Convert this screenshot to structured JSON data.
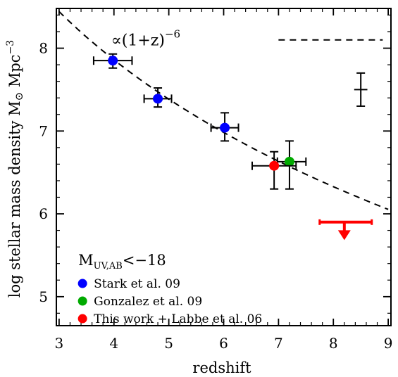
{
  "chart_data": {
    "type": "scatter",
    "xlabel": "redshift",
    "ylabel_main": "log stellar mass density M",
    "ylabel_sun": "⊙",
    "ylabel_unit": " Mpc",
    "ylabel_exp": "−3",
    "xlim": [
      2.95,
      9.05
    ],
    "ylim": [
      4.65,
      8.48
    ],
    "xticks": [
      3,
      4,
      5,
      6,
      7,
      8,
      9
    ],
    "yticks": [
      5,
      6,
      7,
      8
    ],
    "xtick_labels": [
      "3",
      "4",
      "5",
      "6",
      "7",
      "8",
      "9"
    ],
    "ytick_labels": [
      "5",
      "6",
      "7",
      "8"
    ],
    "grid": false,
    "series": [
      {
        "name": "Stark et al. 09",
        "color": "#0000ff",
        "points": [
          {
            "x": 3.98,
            "y": 7.85,
            "xerr": [
              0.35,
              0.35
            ],
            "yerr": [
              0.09,
              0.08
            ]
          },
          {
            "x": 4.8,
            "y": 7.39,
            "xerr": [
              0.25,
              0.25
            ],
            "yerr": [
              0.1,
              0.13
            ]
          },
          {
            "x": 6.02,
            "y": 7.04,
            "xerr": [
              0.25,
              0.25
            ],
            "yerr": [
              0.16,
              0.18
            ]
          }
        ]
      },
      {
        "name": "Gonzalez et al. 09",
        "color": "#00aa00",
        "points": [
          {
            "x": 7.2,
            "y": 6.63,
            "xerr": [
              0.22,
              0.3
            ],
            "yerr": [
              0.33,
              0.25
            ]
          }
        ]
      },
      {
        "name": "This work + Labbe et al. 06",
        "color": "#ff0000",
        "points": [
          {
            "x": 6.92,
            "y": 6.58,
            "xerr": [
              0.4,
              0.4
            ],
            "yerr": [
              0.28,
              0.17
            ]
          }
        ]
      }
    ],
    "upper_limit": {
      "color": "#ff0000",
      "x": 8.2,
      "y": 5.9,
      "x_range": [
        7.75,
        8.7
      ],
      "arrow_to": 5.7
    },
    "typical_error": {
      "x": 8.5,
      "y": 7.5,
      "xerr": 0.12,
      "yerr": 0.2
    },
    "model_curve": {
      "label_prefix": "∝(1+z)",
      "label_exp": "−6",
      "z0": 4.0,
      "logrho0": 7.86,
      "slope": -6,
      "x_range": [
        3.0,
        9.0
      ]
    },
    "legend": {
      "header_main": "M",
      "header_sub": "UV,AB",
      "header_tail": "<−18",
      "placement": "bottom-left",
      "entries": [
        {
          "label": "Stark et al. 09",
          "color": "#0000ff"
        },
        {
          "label": "Gonzalez et al. 09",
          "color": "#00aa00"
        },
        {
          "label": "This work + Labbe et al. 06",
          "color": "#ff0000"
        }
      ]
    }
  }
}
